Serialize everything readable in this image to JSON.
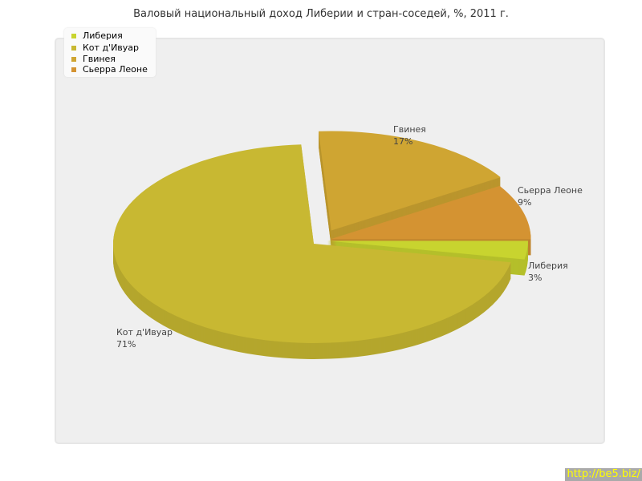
{
  "chart_data": {
    "type": "pie",
    "title": "Валовый национальный доход Либерии и стран-соседей, %, 2011 г.",
    "categories": [
      "Либерия",
      "Кот д'Ивуар",
      "Гвинея",
      "Сьерра Леоне"
    ],
    "values": [
      3,
      71,
      17,
      9
    ],
    "labels": [
      "3%",
      "71%",
      "17%",
      "9%"
    ],
    "colors": [
      "#c8d42f",
      "#c8b832",
      "#cfa532",
      "#d49332"
    ],
    "legend": "top-left",
    "3d": true
  },
  "watermark": "http://be5.biz/"
}
